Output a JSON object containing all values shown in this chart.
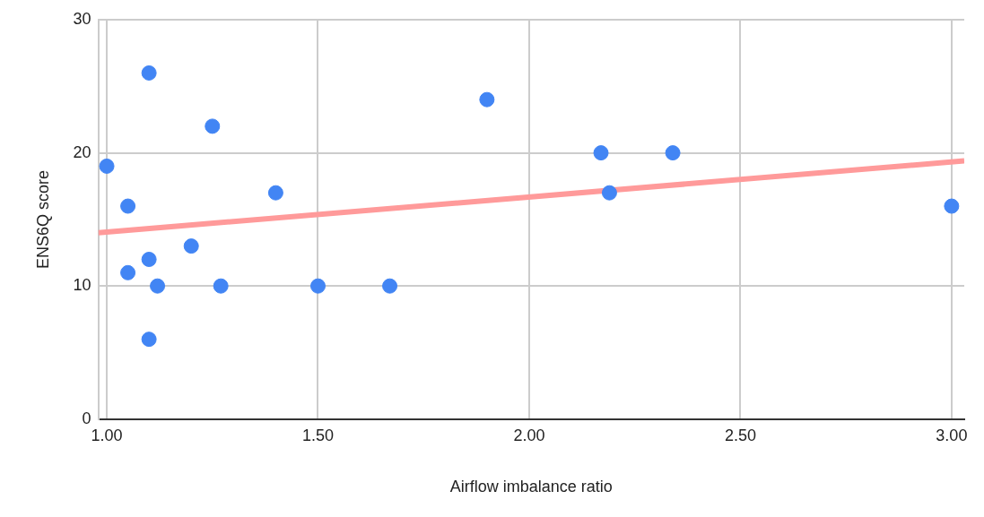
{
  "chart_data": {
    "type": "scatter",
    "xlabel": "Airflow imbalance ratio",
    "ylabel": "ENS6Q score",
    "xlim": [
      0.98,
      3.03
    ],
    "ylim": [
      0,
      30
    ],
    "xticks": [
      {
        "value": 1,
        "label": "1.00"
      },
      {
        "value": 1.5,
        "label": "1.50"
      },
      {
        "value": 2,
        "label": "2.00"
      },
      {
        "value": 2.5,
        "label": "2.50"
      },
      {
        "value": 3,
        "label": "3.00"
      }
    ],
    "yticks": [
      0,
      10,
      20,
      30
    ],
    "grid": true,
    "legend": false,
    "series": [
      {
        "type": "scatter",
        "marker": "circle",
        "color": "#4285f4",
        "x": [
          1.0,
          1.05,
          1.05,
          1.1,
          1.1,
          1.1,
          1.12,
          1.2,
          1.25,
          1.27,
          1.4,
          1.5,
          1.67,
          1.9,
          2.17,
          2.19,
          2.34,
          3.0
        ],
        "values": [
          19,
          16,
          11,
          26,
          12,
          6,
          10,
          13,
          22,
          10,
          17,
          10,
          10,
          24,
          20,
          17,
          20,
          16
        ]
      },
      {
        "type": "line",
        "marker": "none",
        "color": "#ff9a9a",
        "line_style": "solid",
        "x": [
          0.98,
          3.03
        ],
        "values": [
          14.0,
          19.4
        ]
      }
    ]
  }
}
